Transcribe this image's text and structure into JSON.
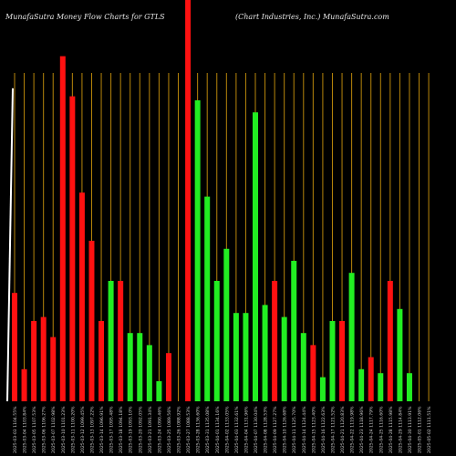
{
  "header": {
    "title_left": "MunafaSutra  Money Flow  Charts for GTLS",
    "title_right": "(Chart Industries,  Inc.) MunafaSutra.com"
  },
  "colors": {
    "up": "#22ee22",
    "down": "#ff1111",
    "grid": "#b8860b",
    "line": "#ffffff",
    "background": "#000000"
  },
  "chart_data": {
    "type": "bar",
    "title": "MunafaSutra  Money Flow  Charts for GTLS",
    "subtitle": "(Chart Industries,  Inc.) MunafaSutra.com",
    "ylim": [
      0,
      100
    ],
    "grid": true,
    "categories": [
      "2025-03-03 1104.55%",
      "2025-03-04 1103.84%",
      "2025-03-05 1107.53%",
      "2025-03-06 1106.27%",
      "2025-03-07 1102.98%",
      "2025-03-10 1101.23%",
      "2025-03-11 1100.20%",
      "2025-03-12 1099.45%",
      "2025-03-13 1097.22%",
      "2025-03-14 1096.91%",
      "2025-03-17 1095.48%",
      "2025-03-18 1094.18%",
      "2025-03-19 1093.10%",
      "2025-03-20 1092.05%",
      "2025-03-21 1091.34%",
      "2025-03-24 1090.46%",
      "2025-03-25 1089.56%",
      "2025-03-26 1088.92%",
      "2025-03-27 1088.53%",
      "2025-03-28 1136.60%",
      "2025-03-31 1135.08%",
      "2025-04-01 1134.16%",
      "2025-04-02 1133.05%",
      "2025-04-03 1132.61%",
      "2025-04-04 1131.96%",
      "2025-04-07 1130.04%",
      "2025-04-08 1128.53%",
      "2025-04-09 1127.27%",
      "2025-04-10 1126.68%",
      "2025-04-11 1125.70%",
      "2025-04-14 1124.44%",
      "2025-04-15 1123.40%",
      "2025-04-16 1122.63%",
      "2025-04-17 1121.52%",
      "2025-04-21 1120.83%",
      "2025-04-22 1119.98%",
      "2025-04-23 1118.96%",
      "2025-04-24 1117.79%",
      "2025-04-25 1116.60%",
      "2025-04-28 1115.98%",
      "2025-04-29 1114.84%",
      "2025-04-30 1113.91%",
      "2025-05-01 1112.06%",
      "2025-05-02 1111.51%"
    ],
    "series": [
      {
        "values": [
          30,
          8,
          20,
          21,
          16,
          86,
          73,
          40,
          32,
          13,
          0,
          0,
          0,
          0,
          0,
          0,
          0,
          12,
          100,
          0,
          0,
          0,
          0,
          0,
          0,
          0,
          0,
          0,
          15,
          0,
          0,
          0,
          0,
          0,
          0,
          0,
          9,
          0,
          0,
          0,
          2,
          0,
          0,
          0
        ],
        "color": "#ff1111"
      },
      {
        "values": [
          0,
          0,
          0,
          0,
          0,
          0,
          0,
          0,
          0,
          0,
          0,
          28,
          22,
          22,
          20,
          16,
          5,
          0,
          0,
          73,
          52,
          38,
          48,
          18,
          22,
          72,
          27,
          16,
          0,
          31,
          15,
          9,
          4,
          26,
          21,
          31,
          0,
          0,
          5,
          0,
          0,
          35,
          30,
          0
        ],
        "color": "#22ee22"
      }
    ],
    "bar_values": [
      27,
      8,
      20,
      21,
      16,
      86,
      76,
      52,
      40,
      20,
      30,
      30,
      17,
      17,
      14,
      5,
      12,
      0,
      100,
      75,
      51,
      30,
      38,
      22,
      22,
      72,
      24,
      30,
      21,
      35,
      17,
      14,
      6,
      20,
      20,
      32,
      8,
      11,
      7,
      30,
      23,
      7,
      0,
      0
    ],
    "bar_colors": [
      "down",
      "down",
      "down",
      "down",
      "down",
      "down",
      "down",
      "down",
      "down",
      "down",
      "up",
      "down",
      "up",
      "up",
      "up",
      "up",
      "down",
      "up",
      "down",
      "up",
      "up",
      "up",
      "up",
      "up",
      "up",
      "up",
      "up",
      "down",
      "up",
      "up",
      "up",
      "down",
      "up",
      "up",
      "down",
      "up",
      "up",
      "down",
      "up",
      "down",
      "up",
      "up",
      "down",
      "up"
    ],
    "line_values": [
      78,
      78,
      78,
      78,
      78,
      78,
      78,
      78,
      78,
      78,
      78,
      78,
      78,
      78,
      78,
      78,
      78,
      78,
      78,
      79,
      80,
      80,
      80,
      80,
      80,
      80,
      80,
      80,
      80,
      80,
      80,
      80,
      80,
      80,
      80,
      80,
      80,
      80,
      81,
      81,
      81,
      81,
      81,
      81
    ]
  }
}
